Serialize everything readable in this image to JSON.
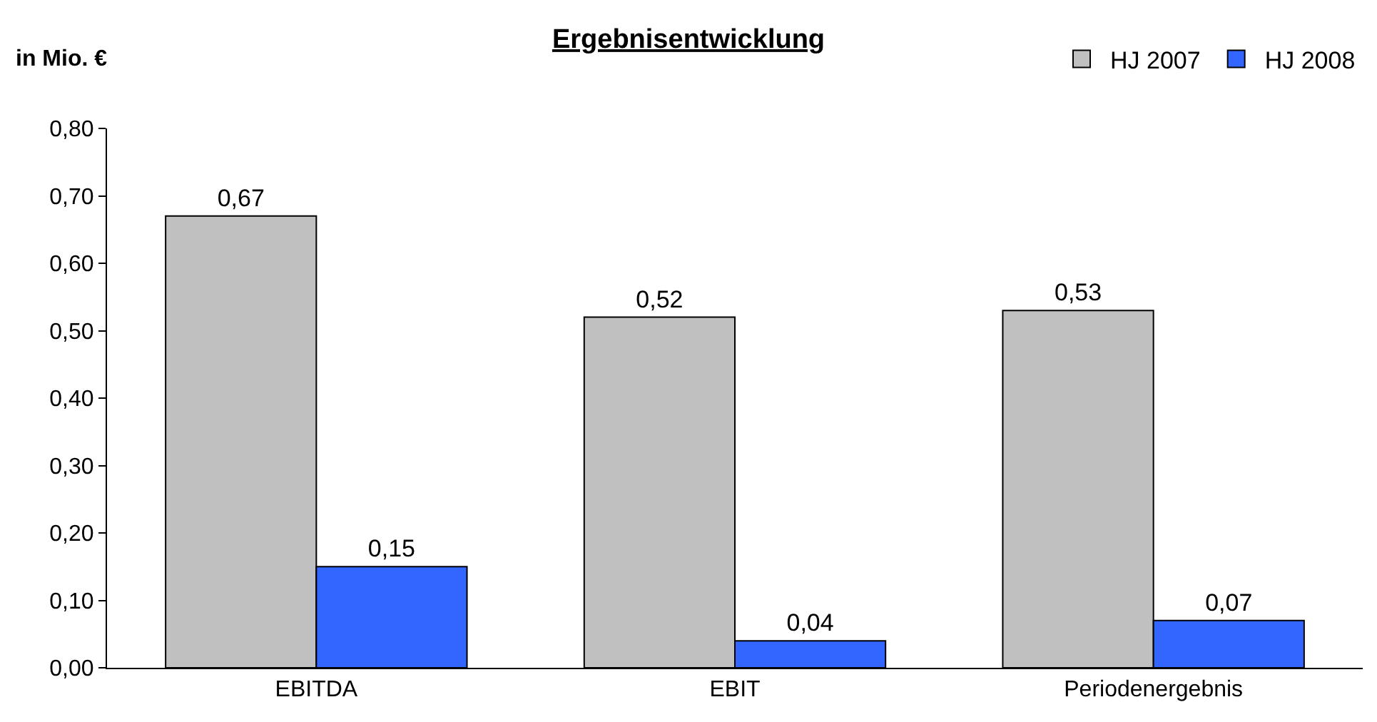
{
  "chart_data": {
    "type": "bar",
    "title": "Ergebnisentwicklung",
    "ylabel": "in Mio. €",
    "categories": [
      "EBITDA",
      "EBIT",
      "Periodenergebnis"
    ],
    "series": [
      {
        "name": "HJ 2007",
        "color": "#c0c0c0",
        "values": [
          0.67,
          0.52,
          0.53
        ],
        "value_labels": [
          "0,67",
          "0,52",
          "0,53"
        ]
      },
      {
        "name": "HJ 2008",
        "color": "#3366ff",
        "values": [
          0.15,
          0.04,
          0.07
        ],
        "value_labels": [
          "0,15",
          "0,04",
          "0,07"
        ]
      }
    ],
    "ylim": [
      0,
      0.8
    ],
    "yticks": [
      {
        "value": 0,
        "label": "0,00"
      },
      {
        "value": 0.1,
        "label": "0,10"
      },
      {
        "value": 0.2,
        "label": "0,20"
      },
      {
        "value": 0.3,
        "label": "0,30"
      },
      {
        "value": 0.4,
        "label": "0,40"
      },
      {
        "value": 0.5,
        "label": "0,50"
      },
      {
        "value": 0.6,
        "label": "0,60"
      },
      {
        "value": 0.7,
        "label": "0,70"
      },
      {
        "value": 0.8,
        "label": "0,80"
      }
    ],
    "grid": false,
    "legend": "top right"
  }
}
